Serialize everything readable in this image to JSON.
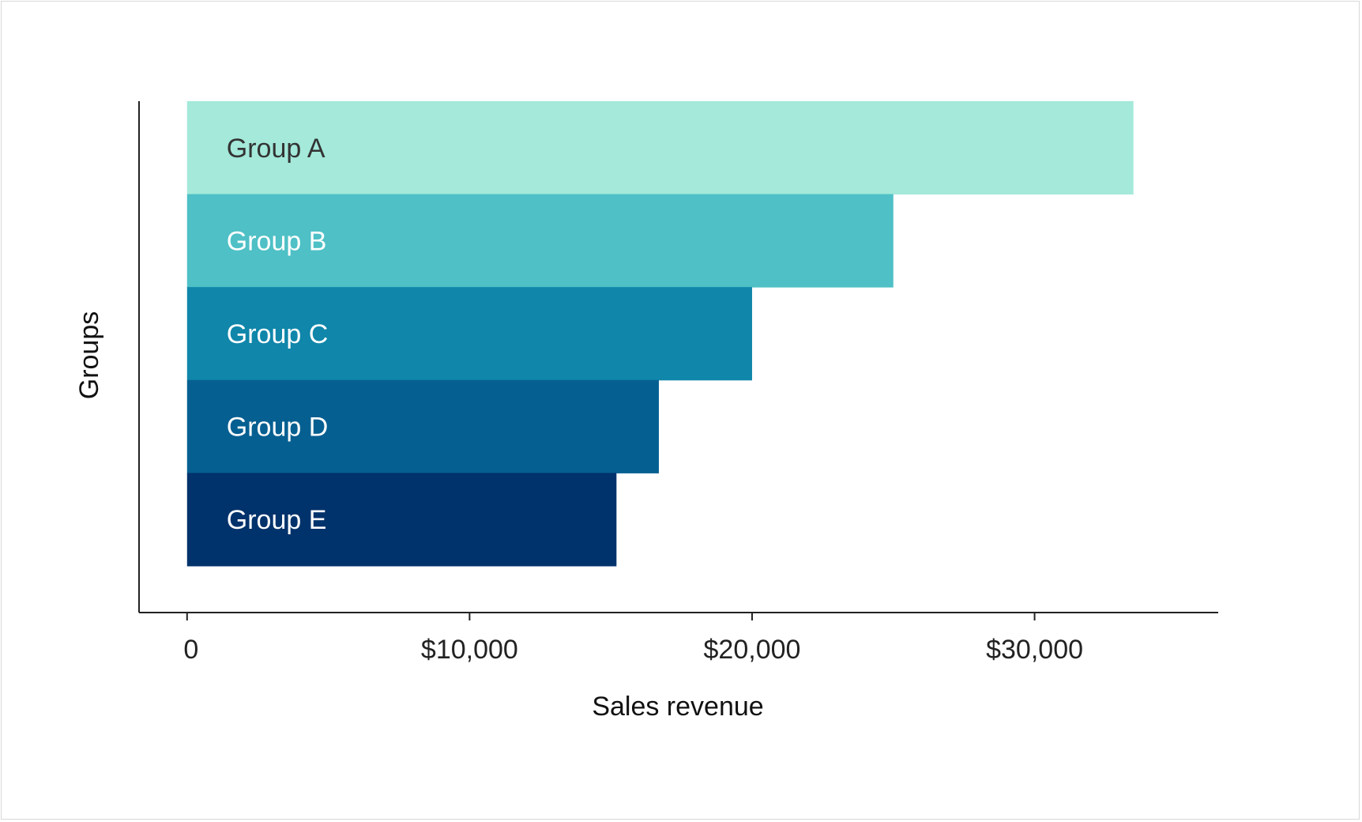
{
  "chart_data": {
    "type": "bar",
    "orientation": "horizontal",
    "title": "",
    "xlabel": "Sales revenue",
    "ylabel": "Groups",
    "xlim": [
      -1700,
      36500
    ],
    "xticks": [
      0,
      10000,
      20000,
      30000
    ],
    "xtick_labels": [
      "0",
      "$10,000",
      "$20,000",
      "$30,000"
    ],
    "grid": false,
    "categories": [
      "Group A",
      "Group B",
      "Group C",
      "Group D",
      "Group E"
    ],
    "values": [
      33500,
      25000,
      20000,
      16700,
      15200
    ],
    "bar_colors": [
      "#a4e9da",
      "#4ec0c6",
      "#0f86aa",
      "#065f91",
      "#00326b"
    ],
    "label_colors": [
      "#333333",
      "#ffffff",
      "#ffffff",
      "#ffffff",
      "#ffffff"
    ]
  }
}
